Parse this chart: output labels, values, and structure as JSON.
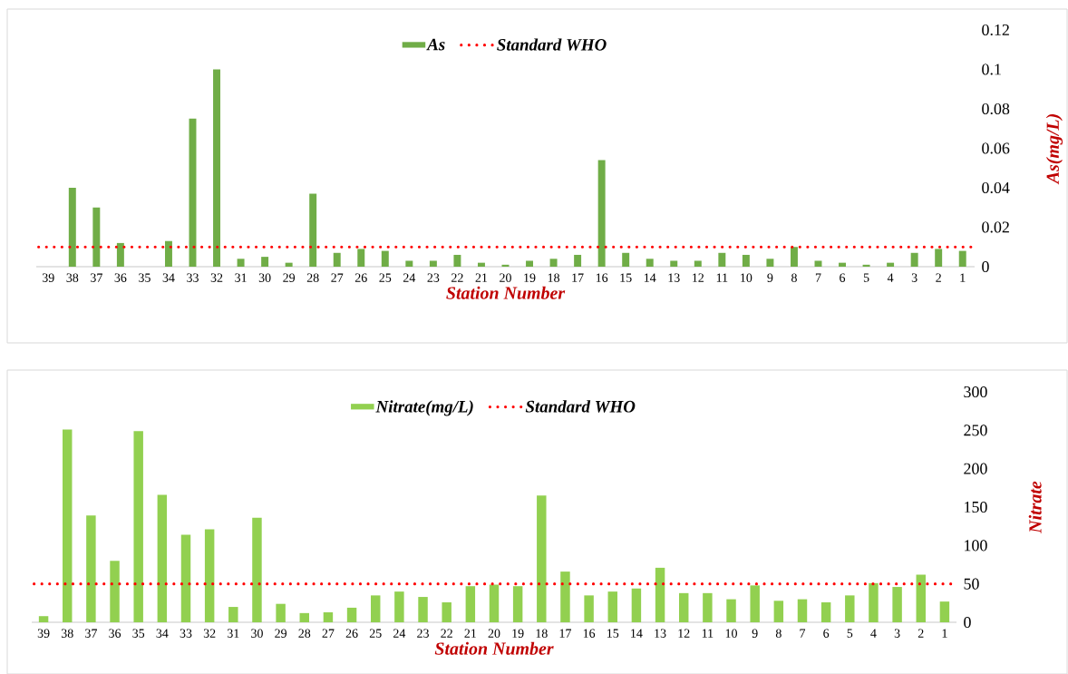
{
  "chart_data": [
    {
      "type": "bar",
      "xlabel": "Station Number",
      "ylabel": "As(mg/L)",
      "categories": [
        "39",
        "38",
        "37",
        "36",
        "35",
        "34",
        "33",
        "32",
        "31",
        "30",
        "29",
        "28",
        "27",
        "26",
        "25",
        "24",
        "23",
        "22",
        "21",
        "20",
        "19",
        "18",
        "17",
        "16",
        "15",
        "14",
        "13",
        "12",
        "11",
        "10",
        "9",
        "8",
        "7",
        "6",
        "5",
        "4",
        "3",
        "2",
        "1"
      ],
      "series": [
        {
          "name": "As",
          "color": "#70ad47",
          "values": [
            0,
            0.04,
            0.03,
            0.012,
            0,
            0.013,
            0.075,
            0.1,
            0.004,
            0.005,
            0.002,
            0.037,
            0.007,
            0.009,
            0.008,
            0.003,
            0.003,
            0.006,
            0.002,
            0.001,
            0.003,
            0.004,
            0.006,
            0.054,
            0.007,
            0.004,
            0.003,
            0.003,
            0.007,
            0.006,
            0.004,
            0.01,
            0.003,
            0.002,
            0.001,
            0.002,
            0.007,
            0.009,
            0.008
          ]
        }
      ],
      "ylim": [
        0,
        0.12
      ],
      "yticks": [
        0,
        0.02,
        0.04,
        0.06,
        0.08,
        0.1,
        0.12
      ],
      "ref_lines": [
        {
          "axis": "y",
          "value": 0.01,
          "label": "Standard WHO",
          "color": "#ff0000",
          "line_style": "dotted"
        }
      ],
      "legend": "top",
      "grid": false
    },
    {
      "type": "bar",
      "xlabel": "Station Number",
      "ylabel": "Nitrate",
      "categories": [
        "39",
        "38",
        "37",
        "36",
        "35",
        "34",
        "33",
        "32",
        "31",
        "30",
        "29",
        "28",
        "27",
        "26",
        "25",
        "24",
        "23",
        "22",
        "21",
        "20",
        "19",
        "18",
        "17",
        "16",
        "15",
        "14",
        "13",
        "12",
        "11",
        "10",
        "9",
        "8",
        "7",
        "6",
        "5",
        "4",
        "3",
        "2",
        "1"
      ],
      "series": [
        {
          "name": "Nitrate(mg/L)",
          "color": "#92d050",
          "values": [
            8,
            251,
            139,
            80,
            249,
            166,
            114,
            121,
            20,
            136,
            24,
            12,
            13,
            19,
            35,
            40,
            33,
            26,
            47,
            49,
            47,
            165,
            66,
            35,
            40,
            44,
            71,
            38,
            38,
            30,
            48,
            28,
            30,
            26,
            35,
            51,
            46,
            62,
            27
          ]
        }
      ],
      "ylim": [
        0,
        300
      ],
      "yticks": [
        0,
        50,
        100,
        150,
        200,
        250,
        300
      ],
      "ref_lines": [
        {
          "axis": "y",
          "value": 50,
          "label": "Standard WHO",
          "color": "#ff0000",
          "line_style": "dotted"
        }
      ],
      "legend": "top",
      "grid": false
    }
  ]
}
